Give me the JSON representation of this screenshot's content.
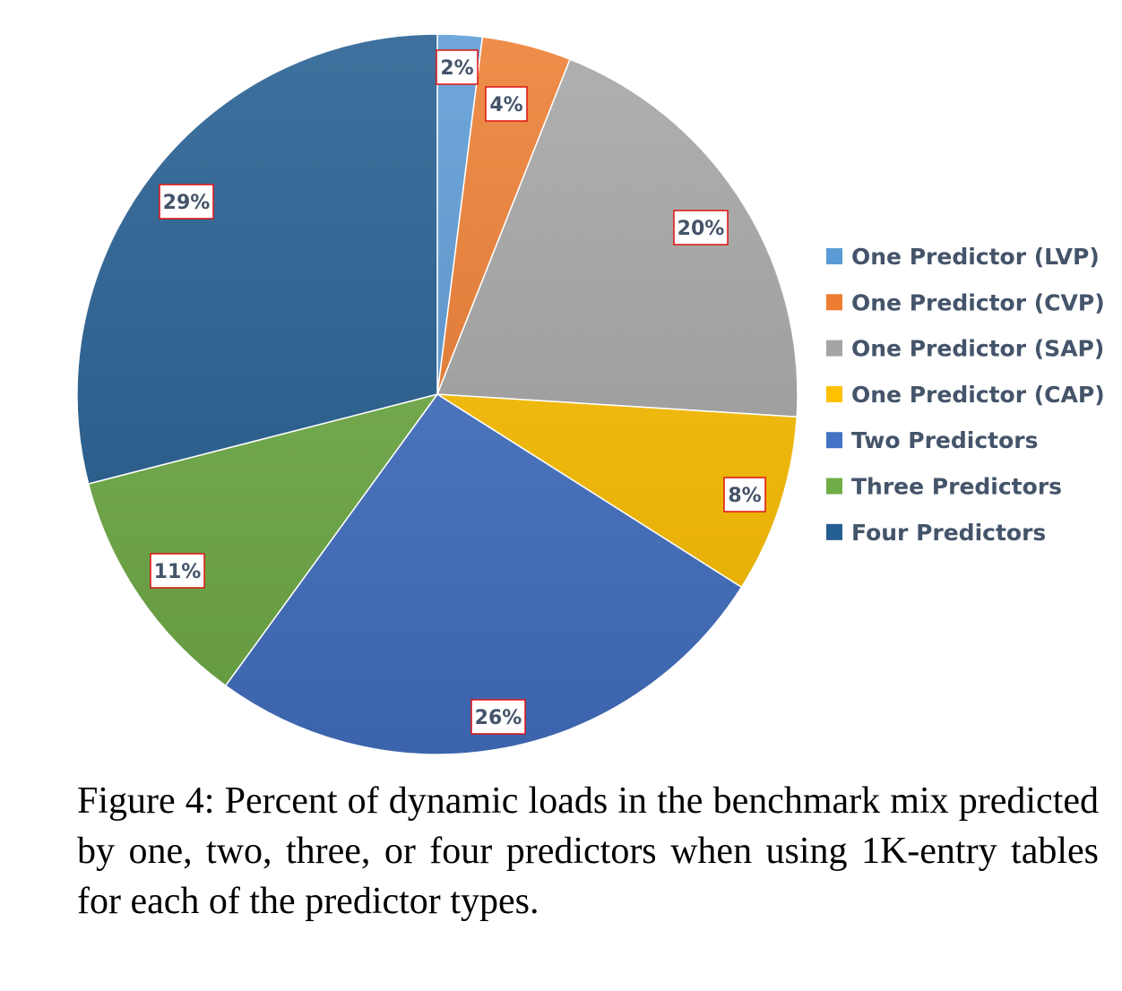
{
  "chart_data": {
    "type": "pie",
    "categories": [
      "One Predictor (LVP)",
      "One Predictor (CVP)",
      "One Predictor (SAP)",
      "One Predictor (CAP)",
      "Two Predictors",
      "Three Predictors",
      "Four Predictors"
    ],
    "values": [
      2,
      4,
      20,
      8,
      26,
      11,
      29
    ],
    "data_labels": [
      "2%",
      "4%",
      "20%",
      "8%",
      "26%",
      "11%",
      "29%"
    ],
    "colors": [
      "#5B9BD5",
      "#ED7D31",
      "#A5A5A5",
      "#FFC000",
      "#4472C4",
      "#70AD47",
      "#255E91"
    ],
    "legend_position": "right",
    "start_angle": "top, clockwise"
  },
  "caption": "Figure 4: Percent of dynamic loads in the benchmark mix predicted by one, two, three, or four predictors when using 1K-entry tables for each of the predictor types."
}
